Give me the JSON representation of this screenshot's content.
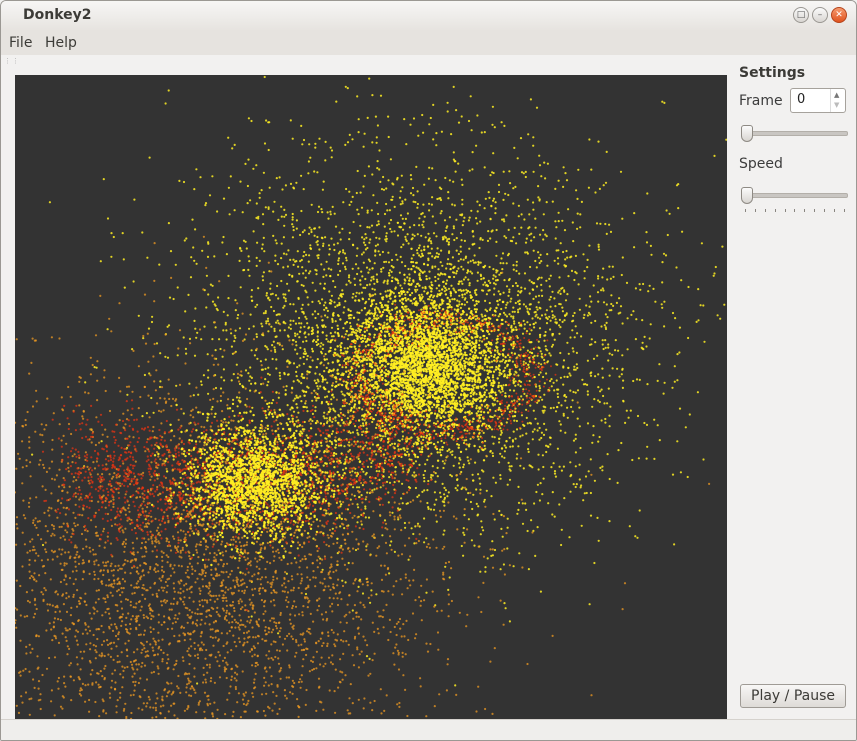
{
  "window": {
    "title": "Donkey2"
  },
  "menu": {
    "items": [
      {
        "label": "File"
      },
      {
        "label": "Help"
      }
    ]
  },
  "settings": {
    "title": "Settings",
    "frame_label": "Frame",
    "frame_value": "0",
    "frame_slider_value": 0,
    "speed_label": "Speed",
    "speed_slider_value": 0
  },
  "controls": {
    "play_label": "Play / Pause"
  },
  "colors": {
    "canvas_bg": "#333333",
    "particle_yellow": "#ffee22",
    "particle_orange": "#ee9922",
    "particle_red": "#ee3311"
  },
  "icons": [
    "maximize-icon",
    "minimize-icon",
    "close-icon",
    "spin-up-icon",
    "spin-down-icon",
    "slider-handle-icon"
  ]
}
